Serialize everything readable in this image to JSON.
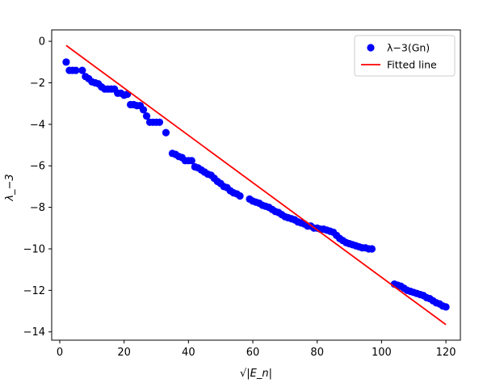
{
  "chart_data": {
    "type": "scatter",
    "xlabel": "√|E_n|",
    "ylabel": "λ_−3",
    "xlim": [
      -2.5,
      124.5
    ],
    "ylim": [
      -14.4,
      0.55
    ],
    "xticks": [
      0,
      20,
      40,
      60,
      80,
      100,
      120
    ],
    "yticks": [
      0,
      -2,
      -4,
      -6,
      -8,
      -10,
      -12,
      -14
    ],
    "xtick_labels": [
      "0",
      "20",
      "40",
      "60",
      "80",
      "100",
      "120"
    ],
    "ytick_labels": [
      "0",
      "−2",
      "−4",
      "−6",
      "−8",
      "−10",
      "−12",
      "−14"
    ],
    "grid": false,
    "legend_position": "top-right",
    "series": [
      {
        "name": "λ−3(Gn)",
        "kind": "scatter",
        "color": "#0000ff",
        "points": [
          [
            2,
            -1.0
          ],
          [
            3,
            -1.4
          ],
          [
            4,
            -1.4
          ],
          [
            5,
            -1.4
          ],
          [
            7,
            -1.4
          ],
          [
            8,
            -1.7
          ],
          [
            9,
            -1.8
          ],
          [
            10,
            -1.95
          ],
          [
            11,
            -2.0
          ],
          [
            12,
            -2.05
          ],
          [
            13,
            -2.2
          ],
          [
            14,
            -2.3
          ],
          [
            15,
            -2.3
          ],
          [
            16,
            -2.3
          ],
          [
            17,
            -2.3
          ],
          [
            18,
            -2.5
          ],
          [
            19,
            -2.5
          ],
          [
            20,
            -2.6
          ],
          [
            21,
            -2.55
          ],
          [
            22,
            -3.05
          ],
          [
            23,
            -3.05
          ],
          [
            24,
            -3.1
          ],
          [
            25,
            -3.1
          ],
          [
            26,
            -3.3
          ],
          [
            27,
            -3.6
          ],
          [
            28,
            -3.9
          ],
          [
            29,
            -3.9
          ],
          [
            30,
            -3.9
          ],
          [
            31,
            -3.9
          ],
          [
            33,
            -4.4
          ],
          [
            35,
            -5.4
          ],
          [
            36,
            -5.45
          ],
          [
            37,
            -5.55
          ],
          [
            38,
            -5.6
          ],
          [
            39,
            -5.75
          ],
          [
            40,
            -5.75
          ],
          [
            41,
            -5.75
          ],
          [
            42,
            -6.05
          ],
          [
            43,
            -6.1
          ],
          [
            44,
            -6.2
          ],
          [
            45,
            -6.3
          ],
          [
            46,
            -6.4
          ],
          [
            47,
            -6.45
          ],
          [
            48,
            -6.6
          ],
          [
            49,
            -6.75
          ],
          [
            50,
            -6.85
          ],
          [
            51,
            -7.0
          ],
          [
            52,
            -7.05
          ],
          [
            53,
            -7.2
          ],
          [
            54,
            -7.3
          ],
          [
            55,
            -7.35
          ],
          [
            56,
            -7.45
          ],
          [
            59,
            -7.6
          ],
          [
            60,
            -7.7
          ],
          [
            61,
            -7.75
          ],
          [
            62,
            -7.8
          ],
          [
            63,
            -7.9
          ],
          [
            64,
            -7.95
          ],
          [
            65,
            -8.0
          ],
          [
            66,
            -8.1
          ],
          [
            67,
            -8.2
          ],
          [
            68,
            -8.25
          ],
          [
            69,
            -8.35
          ],
          [
            70,
            -8.45
          ],
          [
            71,
            -8.5
          ],
          [
            72,
            -8.55
          ],
          [
            73,
            -8.6
          ],
          [
            74,
            -8.7
          ],
          [
            75,
            -8.75
          ],
          [
            76,
            -8.8
          ],
          [
            77,
            -8.9
          ],
          [
            78,
            -8.9
          ],
          [
            79,
            -9.0
          ],
          [
            80,
            -9.0
          ],
          [
            81,
            -9.05
          ],
          [
            82,
            -9.05
          ],
          [
            83,
            -9.1
          ],
          [
            84,
            -9.15
          ],
          [
            85,
            -9.2
          ],
          [
            86,
            -9.35
          ],
          [
            87,
            -9.5
          ],
          [
            88,
            -9.6
          ],
          [
            89,
            -9.7
          ],
          [
            90,
            -9.75
          ],
          [
            91,
            -9.8
          ],
          [
            92,
            -9.85
          ],
          [
            93,
            -9.9
          ],
          [
            94,
            -9.95
          ],
          [
            95,
            -9.95
          ],
          [
            96,
            -10.0
          ],
          [
            97,
            -10.0
          ],
          [
            104,
            -11.7
          ],
          [
            105,
            -11.75
          ],
          [
            106,
            -11.8
          ],
          [
            107,
            -11.9
          ],
          [
            108,
            -12.0
          ],
          [
            109,
            -12.05
          ],
          [
            110,
            -12.1
          ],
          [
            111,
            -12.15
          ],
          [
            112,
            -12.2
          ],
          [
            113,
            -12.25
          ],
          [
            114,
            -12.35
          ],
          [
            115,
            -12.4
          ],
          [
            116,
            -12.5
          ],
          [
            117,
            -12.6
          ],
          [
            118,
            -12.65
          ],
          [
            119,
            -12.75
          ],
          [
            120,
            -12.8
          ]
        ]
      },
      {
        "name": "Fitted line",
        "kind": "line",
        "color": "#ff0000",
        "x": [
          2,
          120
        ],
        "y": [
          -0.2,
          -13.65
        ]
      }
    ]
  }
}
